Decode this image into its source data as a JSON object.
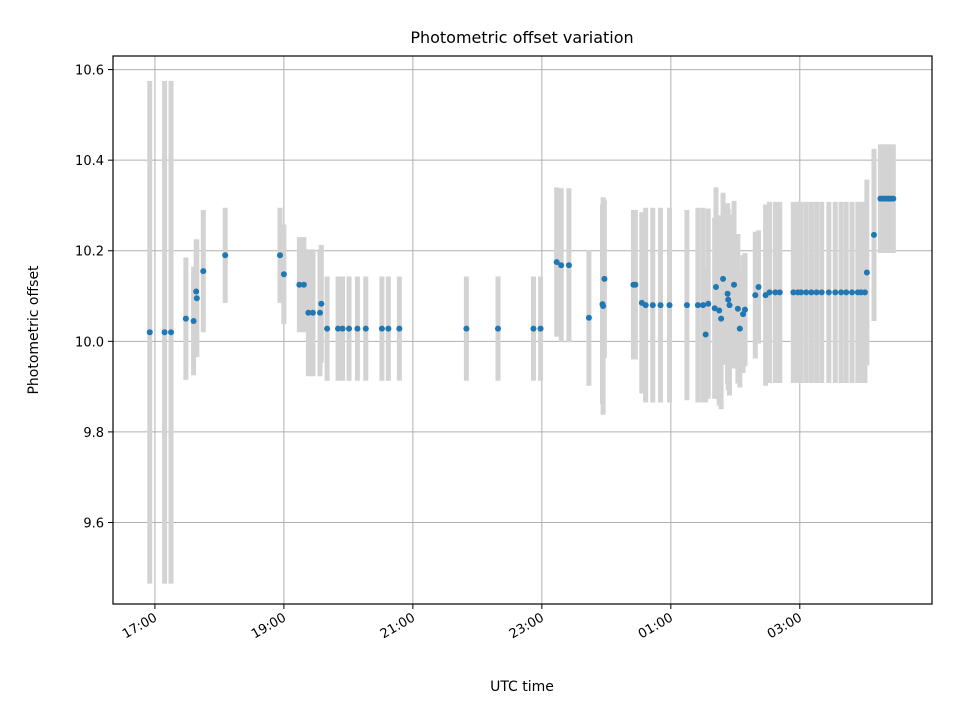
{
  "chart_data": {
    "type": "scatter",
    "title": "Photometric offset variation",
    "xlabel": "UTC time",
    "ylabel": "Photometric offset",
    "x_ticks": [
      "17:00",
      "19:00",
      "21:00",
      "23:00",
      "01:00",
      "03:00"
    ],
    "x_tick_hours": [
      17,
      19,
      21,
      23,
      25,
      27
    ],
    "xlim_hours": [
      16.35,
      29.05
    ],
    "y_ticks": [
      "9.6",
      "9.8",
      "10.0",
      "10.2",
      "10.4",
      "10.6"
    ],
    "y_tick_values": [
      9.6,
      9.8,
      10.0,
      10.2,
      10.4,
      10.6
    ],
    "ylim": [
      9.42,
      10.63
    ],
    "grid": true,
    "marker_color": "#1f77b4",
    "errorbar_color": "#d3d3d3",
    "series": [
      {
        "points": [
          [
            16.92,
            10.02,
            0.555
          ],
          [
            17.15,
            10.02,
            0.555
          ],
          [
            17.25,
            10.02,
            0.555
          ],
          [
            17.48,
            10.05,
            0.135
          ],
          [
            17.6,
            10.045,
            0.12
          ],
          [
            17.64,
            10.11,
            0.115
          ],
          [
            17.65,
            10.095,
            0.13
          ],
          [
            17.75,
            10.155,
            0.135
          ],
          [
            18.09,
            10.19,
            0.105
          ],
          [
            18.94,
            10.19,
            0.105
          ],
          [
            19.0,
            10.148,
            0.11
          ],
          [
            19.24,
            10.125,
            0.105
          ],
          [
            19.31,
            10.125,
            0.105
          ],
          [
            19.38,
            10.063,
            0.14
          ],
          [
            19.45,
            10.063,
            0.14
          ],
          [
            19.56,
            10.063,
            0.14
          ],
          [
            19.58,
            10.083,
            0.13
          ],
          [
            19.67,
            10.028,
            0.115
          ],
          [
            19.84,
            10.028,
            0.115
          ],
          [
            19.91,
            10.028,
            0.115
          ],
          [
            20.01,
            10.028,
            0.115
          ],
          [
            20.14,
            10.028,
            0.115
          ],
          [
            20.27,
            10.028,
            0.115
          ],
          [
            20.52,
            10.028,
            0.115
          ],
          [
            20.62,
            10.028,
            0.115
          ],
          [
            20.79,
            10.028,
            0.115
          ],
          [
            21.83,
            10.028,
            0.115
          ],
          [
            22.32,
            10.028,
            0.115
          ],
          [
            22.87,
            10.028,
            0.115
          ],
          [
            22.98,
            10.028,
            0.115
          ],
          [
            23.23,
            10.175,
            0.165
          ],
          [
            23.3,
            10.168,
            0.17
          ],
          [
            23.42,
            10.168,
            0.17
          ],
          [
            23.73,
            10.052,
            0.15
          ],
          [
            23.94,
            10.082,
            0.22
          ],
          [
            23.95,
            10.078,
            0.24
          ],
          [
            23.97,
            10.138,
            0.175
          ],
          [
            24.42,
            10.125,
            0.165
          ],
          [
            24.45,
            10.125,
            0.165
          ],
          [
            24.55,
            10.085,
            0.2
          ],
          [
            24.61,
            10.08,
            0.215
          ],
          [
            24.72,
            10.08,
            0.215
          ],
          [
            24.84,
            10.08,
            0.215
          ],
          [
            24.98,
            10.08,
            0.215
          ],
          [
            25.25,
            10.08,
            0.21
          ],
          [
            25.42,
            10.08,
            0.215
          ],
          [
            25.5,
            10.08,
            0.215
          ],
          [
            25.54,
            10.015,
            0.15
          ],
          [
            25.58,
            10.083,
            0.21
          ],
          [
            25.68,
            10.073,
            0.2
          ],
          [
            25.7,
            10.12,
            0.22
          ],
          [
            25.75,
            10.068,
            0.21
          ],
          [
            25.78,
            10.05,
            0.2
          ],
          [
            25.81,
            10.138,
            0.19
          ],
          [
            25.88,
            10.105,
            0.2
          ],
          [
            25.89,
            10.092,
            0.2
          ],
          [
            25.91,
            10.08,
            0.2
          ],
          [
            25.98,
            10.125,
            0.185
          ],
          [
            26.04,
            10.072,
            0.165
          ],
          [
            26.07,
            10.028,
            0.13
          ],
          [
            26.12,
            10.06,
            0.13
          ],
          [
            26.15,
            10.07,
            0.125
          ],
          [
            26.31,
            10.102,
            0.14
          ],
          [
            26.36,
            10.12,
            0.125
          ],
          [
            26.47,
            10.102,
            0.2
          ],
          [
            26.53,
            10.108,
            0.2
          ],
          [
            26.62,
            10.108,
            0.2
          ],
          [
            26.69,
            10.108,
            0.2
          ],
          [
            26.9,
            10.108,
            0.2
          ],
          [
            26.97,
            10.108,
            0.2
          ],
          [
            27.02,
            10.108,
            0.2
          ],
          [
            27.1,
            10.108,
            0.2
          ],
          [
            27.18,
            10.108,
            0.2
          ],
          [
            27.26,
            10.108,
            0.2
          ],
          [
            27.34,
            10.108,
            0.2
          ],
          [
            27.45,
            10.108,
            0.2
          ],
          [
            27.55,
            10.108,
            0.2
          ],
          [
            27.64,
            10.108,
            0.2
          ],
          [
            27.72,
            10.108,
            0.2
          ],
          [
            27.81,
            10.108,
            0.2
          ],
          [
            27.9,
            10.108,
            0.2
          ],
          [
            27.95,
            10.108,
            0.2
          ],
          [
            28.01,
            10.108,
            0.2
          ],
          [
            28.04,
            10.152,
            0.205
          ],
          [
            28.15,
            10.235,
            0.19
          ],
          [
            28.25,
            10.315,
            0.12
          ],
          [
            28.29,
            10.315,
            0.12
          ],
          [
            28.33,
            10.315,
            0.12
          ],
          [
            28.37,
            10.315,
            0.12
          ],
          [
            28.41,
            10.315,
            0.12
          ],
          [
            28.45,
            10.315,
            0.12
          ]
        ]
      }
    ]
  }
}
